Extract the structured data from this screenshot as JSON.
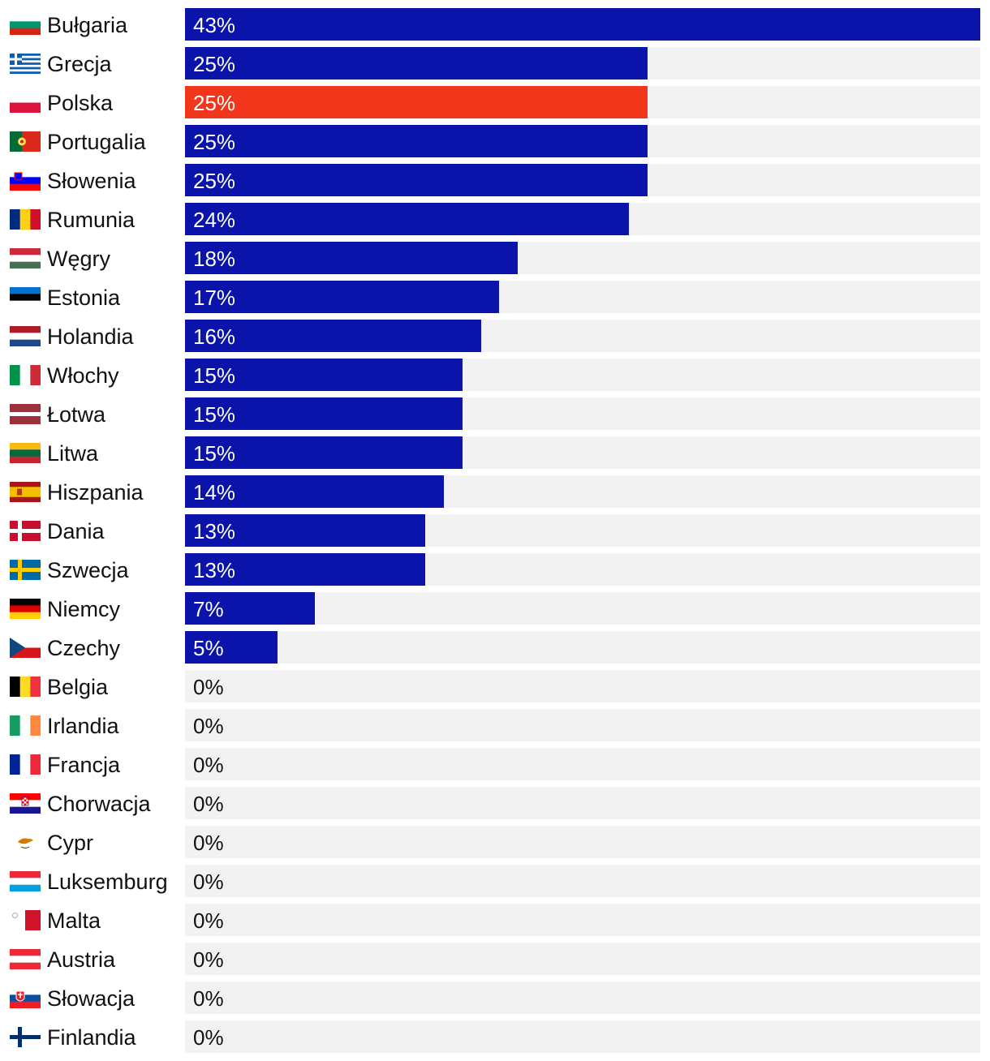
{
  "chart_data": {
    "type": "bar",
    "orientation": "horizontal",
    "title": "",
    "xlabel": "",
    "ylabel": "",
    "xlim": [
      0,
      43
    ],
    "grid": false,
    "colors": {
      "default": "#0a14aa",
      "highlight": "#f2361c",
      "track": "#f2f2f2",
      "label_on_bar": "#ffffff",
      "label_off_bar": "#111111"
    },
    "highlight": "Polska",
    "categories": [
      "Bułgaria",
      "Grecja",
      "Polska",
      "Portugalia",
      "Słowenia",
      "Rumunia",
      "Węgry",
      "Estonia",
      "Holandia",
      "Włochy",
      "Łotwa",
      "Litwa",
      "Hiszpania",
      "Dania",
      "Szwecja",
      "Niemcy",
      "Czechy",
      "Belgia",
      "Irlandia",
      "Francja",
      "Chorwacja",
      "Cypr",
      "Luksemburg",
      "Malta",
      "Austria",
      "Słowacja",
      "Finlandia"
    ],
    "values": [
      43,
      25,
      25,
      25,
      25,
      24,
      18,
      17,
      16,
      15,
      15,
      15,
      14,
      13,
      13,
      7,
      5,
      0,
      0,
      0,
      0,
      0,
      0,
      0,
      0,
      0,
      0
    ],
    "value_labels": [
      "43%",
      "25%",
      "25%",
      "25%",
      "25%",
      "24%",
      "18%",
      "17%",
      "16%",
      "15%",
      "15%",
      "15%",
      "14%",
      "13%",
      "13%",
      "7%",
      "5%",
      "0%",
      "0%",
      "0%",
      "0%",
      "0%",
      "0%",
      "0%",
      "0%",
      "0%",
      "0%"
    ],
    "flags": [
      "bg-flag-icon",
      "gr-flag-icon",
      "pl-flag-icon",
      "pt-flag-icon",
      "si-flag-icon",
      "ro-flag-icon",
      "hu-flag-icon",
      "ee-flag-icon",
      "nl-flag-icon",
      "it-flag-icon",
      "lv-flag-icon",
      "lt-flag-icon",
      "es-flag-icon",
      "dk-flag-icon",
      "se-flag-icon",
      "de-flag-icon",
      "cz-flag-icon",
      "be-flag-icon",
      "ie-flag-icon",
      "fr-flag-icon",
      "hr-flag-icon",
      "cy-flag-icon",
      "lu-flag-icon",
      "mt-flag-icon",
      "at-flag-icon",
      "sk-flag-icon",
      "fi-flag-icon"
    ]
  }
}
